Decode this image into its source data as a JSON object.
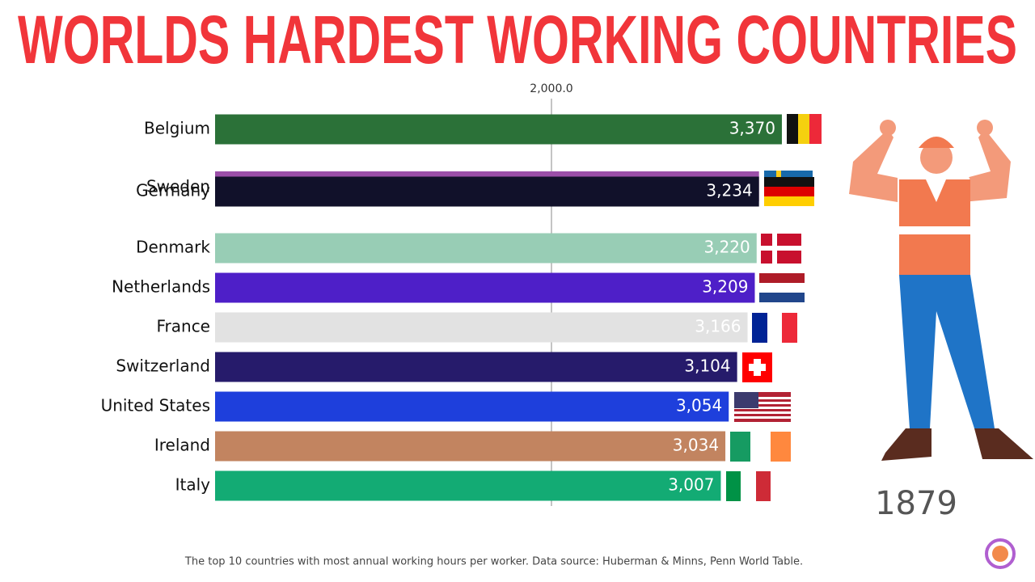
{
  "chart_data": {
    "type": "bar",
    "orientation": "horizontal",
    "title": "WORLDS HARDEST WORKING COUNTRIES",
    "categories": [
      "Belgium",
      "Sweden",
      "Germany",
      "Denmark",
      "Netherlands",
      "France",
      "Switzerland",
      "United States",
      "Ireland",
      "Italy"
    ],
    "values": [
      3370,
      3234,
      3234,
      3220,
      3209,
      3166,
      3104,
      3054,
      3034,
      3007
    ],
    "value_labels": [
      "3,370",
      null,
      "3,234",
      "3,220",
      "3,209",
      "3,166",
      "3,104",
      "3,054",
      "3,034",
      "3,007"
    ],
    "colors": [
      "#2b7138",
      "#9b4fa8",
      "#11112a",
      "#98cdb5",
      "#4e1fc8",
      "#e2e2e2",
      "#261b6b",
      "#1e3fdc",
      "#c28460",
      "#13ab74"
    ],
    "xlim": [
      0,
      3700
    ],
    "xticks": [
      {
        "value": 2000,
        "label": "2,000.0"
      }
    ],
    "grid": true,
    "year_label": "1879",
    "caption": "The top 10 countries with most annual working hours per worker. Data source: Huberman & Minns, Penn World Table."
  }
}
